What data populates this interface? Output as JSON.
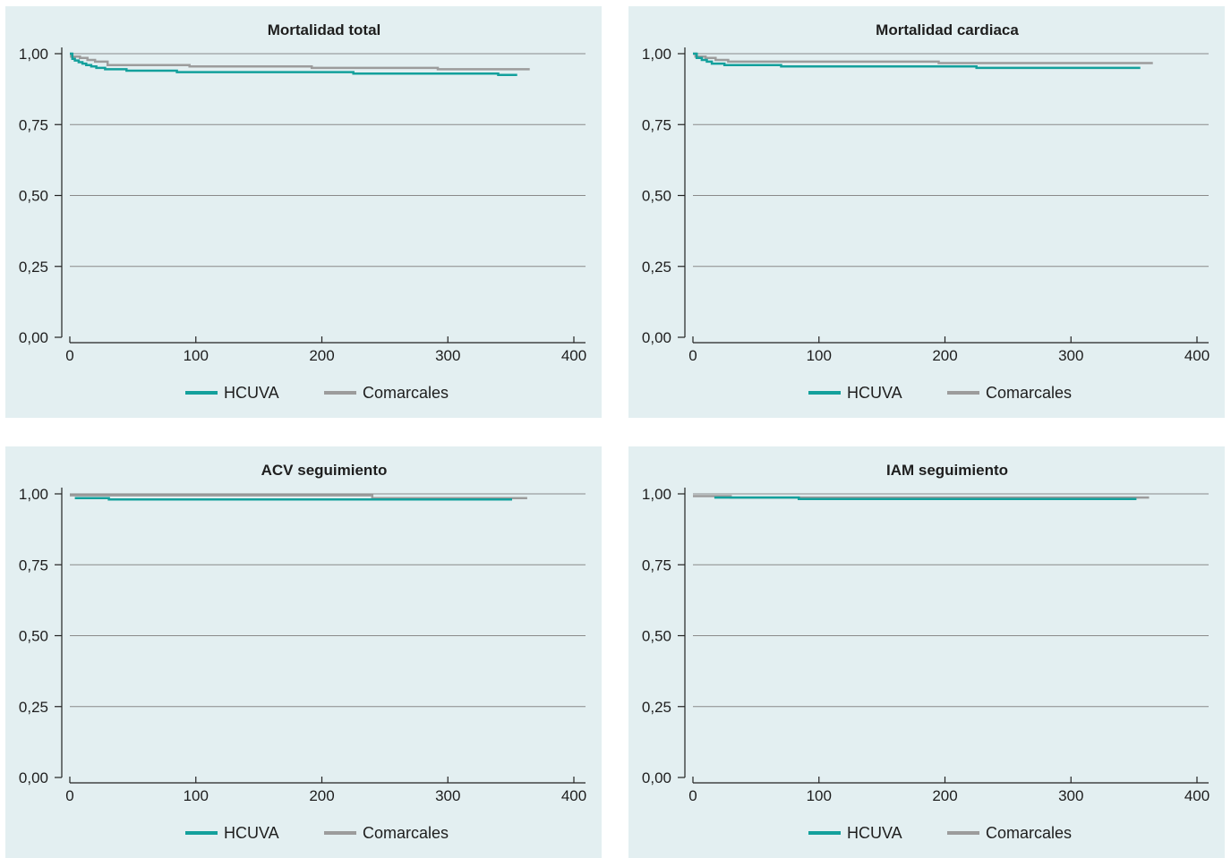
{
  "colors": {
    "HCUVA": "#13a09c",
    "Comarcales": "#9c9c9c",
    "grid": "#8a8a8a",
    "axis": "#222222",
    "background": "#e3eff1"
  },
  "chart_data": [
    {
      "type": "line",
      "title": "Mortalidad total",
      "xlim": [
        0,
        400
      ],
      "ylim": [
        0,
        1
      ],
      "xticks": [
        0,
        100,
        200,
        300,
        400
      ],
      "xtick_labels": [
        "0",
        "100",
        "200",
        "300",
        "400"
      ],
      "yticks": [
        0,
        0.25,
        0.5,
        0.75,
        1
      ],
      "ytick_labels": [
        "0,00",
        "0,25",
        "0,50",
        "0,75",
        "1,00"
      ],
      "grid": true,
      "legend": "bottom",
      "series": [
        {
          "name": "HCUVA",
          "color": "#13a09c",
          "x": [
            0,
            2,
            4,
            7,
            10,
            13,
            17,
            21,
            28,
            45,
            85,
            225,
            340,
            355
          ],
          "y": [
            1.0,
            0.982,
            0.976,
            0.97,
            0.965,
            0.96,
            0.955,
            0.95,
            0.945,
            0.94,
            0.935,
            0.93,
            0.925,
            0.925
          ]
        },
        {
          "name": "Comarcales",
          "color": "#9c9c9c",
          "x": [
            0,
            1,
            8,
            14,
            20,
            30,
            95,
            192,
            292,
            365
          ],
          "y": [
            1.0,
            0.99,
            0.985,
            0.978,
            0.972,
            0.96,
            0.955,
            0.95,
            0.945,
            0.945
          ]
        }
      ]
    },
    {
      "type": "line",
      "title": "Mortalidad cardiaca",
      "xlim": [
        0,
        400
      ],
      "ylim": [
        0,
        1
      ],
      "xticks": [
        0,
        100,
        200,
        300,
        400
      ],
      "xtick_labels": [
        "0",
        "100",
        "200",
        "300",
        "400"
      ],
      "yticks": [
        0,
        0.25,
        0.5,
        0.75,
        1
      ],
      "ytick_labels": [
        "0,00",
        "0,25",
        "0,50",
        "0,75",
        "1,00"
      ],
      "grid": true,
      "legend": "bottom",
      "series": [
        {
          "name": "HCUVA",
          "color": "#13a09c",
          "x": [
            0,
            3,
            7,
            11,
            15,
            25,
            70,
            225,
            355
          ],
          "y": [
            1.0,
            0.985,
            0.978,
            0.972,
            0.965,
            0.96,
            0.955,
            0.95,
            0.95
          ]
        },
        {
          "name": "Comarcales",
          "color": "#9c9c9c",
          "x": [
            0,
            2,
            10,
            18,
            28,
            195,
            365
          ],
          "y": [
            1.0,
            0.99,
            0.985,
            0.978,
            0.972,
            0.967,
            0.967
          ]
        }
      ]
    },
    {
      "type": "line",
      "title": "ACV seguimiento",
      "xlim": [
        0,
        400
      ],
      "ylim": [
        0,
        1
      ],
      "xticks": [
        0,
        100,
        200,
        300,
        400
      ],
      "xtick_labels": [
        "0",
        "100",
        "200",
        "300",
        "400"
      ],
      "yticks": [
        0,
        0.25,
        0.5,
        0.75,
        1
      ],
      "ytick_labels": [
        "0,00",
        "0,25",
        "0,50",
        "0,75",
        "1,00"
      ],
      "grid": true,
      "legend": "bottom",
      "series": [
        {
          "name": "HCUVA",
          "color": "#13a09c",
          "x": [
            4,
            31,
            351
          ],
          "y": [
            0.985,
            0.98,
            0.98
          ]
        },
        {
          "name": "Comarcales",
          "color": "#9c9c9c",
          "x": [
            0,
            240,
            363
          ],
          "y": [
            0.995,
            0.985,
            0.985
          ]
        }
      ]
    },
    {
      "type": "line",
      "title": "IAM seguimiento",
      "xlim": [
        0,
        400
      ],
      "ylim": [
        0,
        1
      ],
      "xticks": [
        0,
        100,
        200,
        300,
        400
      ],
      "xtick_labels": [
        "0",
        "100",
        "200",
        "300",
        "400"
      ],
      "yticks": [
        0,
        0.25,
        0.5,
        0.75,
        1
      ],
      "ytick_labels": [
        "0,00",
        "0,25",
        "0,50",
        "0,75",
        "1,00"
      ],
      "grid": true,
      "legend": "bottom",
      "series": [
        {
          "name": "HCUVA",
          "color": "#13a09c",
          "x": [
            17,
            84,
            352
          ],
          "y": [
            0.987,
            0.982,
            0.982
          ]
        },
        {
          "name": "Comarcales",
          "color": "#9c9c9c",
          "x": [
            0,
            30,
            362
          ],
          "y": [
            0.992,
            0.987,
            0.987
          ]
        }
      ]
    }
  ]
}
